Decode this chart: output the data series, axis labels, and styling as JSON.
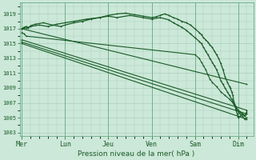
{
  "bg_color": "#cce8d8",
  "grid_color": "#aacfbe",
  "line_color": "#1a5c28",
  "xlabel": "Pression niveau de la mer( hPa )",
  "ylim": [
    1002.5,
    1020.5
  ],
  "yticks": [
    1003,
    1005,
    1007,
    1009,
    1011,
    1013,
    1015,
    1017,
    1019
  ],
  "xtick_labels": [
    "Mer",
    "Lun",
    "Jeu",
    "Ven",
    "Sam",
    "Dim"
  ],
  "xtick_positions": [
    0,
    1,
    2,
    3,
    4,
    5
  ],
  "series": [
    {
      "x": [
        0,
        0.05,
        0.1,
        0.15,
        0.2,
        0.3,
        0.5,
        0.7,
        0.9,
        1.0,
        1.2,
        1.4,
        1.6,
        1.8,
        2.0,
        2.2,
        2.4,
        2.6,
        2.8,
        3.0,
        3.1,
        3.2,
        3.3,
        3.4,
        3.5,
        3.6,
        3.7,
        3.8,
        3.9,
        4.0,
        4.1,
        4.15,
        4.2,
        4.25,
        4.3,
        4.35,
        4.4,
        4.45,
        4.5,
        4.55,
        4.6,
        4.65,
        4.7,
        4.75,
        4.8,
        4.82,
        4.85,
        4.88,
        4.9,
        4.92,
        4.95,
        4.98,
        5.0,
        5.05,
        5.1,
        5.15,
        5.2
      ],
      "y": [
        1017.0,
        1017.2,
        1017.3,
        1017.1,
        1017.4,
        1017.6,
        1017.8,
        1017.5,
        1017.3,
        1017.5,
        1017.8,
        1018.0,
        1018.3,
        1018.5,
        1018.8,
        1019.0,
        1019.1,
        1018.9,
        1018.7,
        1018.5,
        1018.6,
        1018.8,
        1019.0,
        1018.8,
        1018.5,
        1018.3,
        1018.0,
        1017.8,
        1017.5,
        1017.0,
        1016.5,
        1016.2,
        1015.8,
        1015.5,
        1015.2,
        1014.8,
        1014.5,
        1014.0,
        1013.5,
        1013.0,
        1012.3,
        1011.5,
        1010.5,
        1009.8,
        1009.2,
        1009.0,
        1008.5,
        1008.0,
        1007.2,
        1006.8,
        1006.0,
        1005.5,
        1005.0,
        1005.2,
        1005.5,
        1005.3,
        1005.5
      ],
      "lw": 0.9
    },
    {
      "x": [
        0,
        0.1,
        0.2,
        0.4,
        0.6,
        0.8,
        1.0,
        1.2,
        1.5,
        1.8,
        2.0,
        2.2,
        2.5,
        2.8,
        3.0,
        3.2,
        3.4,
        3.5,
        3.6,
        3.7,
        3.8,
        3.9,
        4.0,
        4.1,
        4.15,
        4.2,
        4.25,
        4.3,
        4.35,
        4.4,
        4.45,
        4.5,
        4.55,
        4.6,
        4.65,
        4.7,
        4.75,
        4.8,
        4.85,
        4.9,
        4.95,
        5.0,
        5.05,
        5.1,
        5.15,
        5.2
      ],
      "y": [
        1017.0,
        1017.1,
        1017.3,
        1017.5,
        1017.3,
        1017.6,
        1017.8,
        1018.0,
        1018.3,
        1018.5,
        1018.7,
        1018.5,
        1018.8,
        1018.5,
        1018.3,
        1018.5,
        1018.2,
        1017.8,
        1017.5,
        1017.2,
        1016.8,
        1016.3,
        1015.8,
        1015.3,
        1015.0,
        1014.5,
        1014.0,
        1013.5,
        1013.0,
        1012.5,
        1012.0,
        1011.5,
        1010.8,
        1010.0,
        1009.5,
        1009.0,
        1008.5,
        1008.0,
        1007.5,
        1007.0,
        1006.5,
        1006.0,
        1005.8,
        1005.5,
        1005.2,
        1005.8
      ],
      "lw": 0.9
    },
    {
      "x": [
        0,
        5.2
      ],
      "y": [
        1017.0,
        1009.5
      ],
      "lw": 0.8
    },
    {
      "x": [
        0,
        5.2
      ],
      "y": [
        1015.5,
        1006.0
      ],
      "lw": 0.8
    },
    {
      "x": [
        0,
        5.2
      ],
      "y": [
        1015.2,
        1005.5
      ],
      "lw": 0.8
    },
    {
      "x": [
        0,
        5.2
      ],
      "y": [
        1015.0,
        1004.8
      ],
      "lw": 0.8
    },
    {
      "x": [
        0,
        0.05,
        0.1,
        4.0,
        4.1,
        4.15,
        4.2,
        4.25,
        4.3,
        4.35,
        4.4,
        4.5,
        4.6,
        4.7,
        4.8,
        4.85,
        4.9,
        4.95,
        5.0,
        5.05,
        5.1,
        5.15,
        5.2
      ],
      "y": [
        1016.5,
        1016.3,
        1016.0,
        1013.5,
        1013.0,
        1012.5,
        1012.0,
        1011.5,
        1010.8,
        1010.2,
        1009.8,
        1009.2,
        1008.5,
        1008.0,
        1007.5,
        1007.2,
        1006.8,
        1006.3,
        1005.8,
        1005.5,
        1005.2,
        1004.8,
        1005.0
      ],
      "lw": 0.8
    }
  ],
  "end_markers": {
    "x": [
      5.1,
      5.12,
      5.14,
      5.16,
      5.18,
      5.2,
      5.08,
      5.05
    ],
    "y": [
      1005.5,
      1005.2,
      1004.8,
      1005.0,
      1005.5,
      1005.8,
      1004.5,
      1003.2
    ]
  }
}
